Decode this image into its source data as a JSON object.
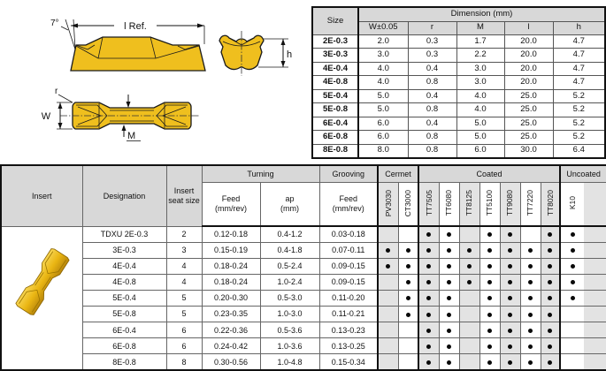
{
  "colors": {
    "insert_gold": "#EFBF1E",
    "header_gray": "#D8D8D8",
    "column_stripe": "#E3E3E3",
    "dot_black": "#0A0A0A",
    "border_dark": "#111111"
  },
  "drawings": {
    "side_view": {
      "angle_label": "7°",
      "length_label": "l Ref."
    },
    "end_view": {
      "height_label": "h"
    },
    "top_view": {
      "radius_label": "r",
      "width_label": "W",
      "middle_label": "M"
    }
  },
  "dimension_table": {
    "size_header": "Size",
    "title": "Dimension (mm)",
    "columns": [
      "W±0.05",
      "r",
      "M",
      "l",
      "h"
    ],
    "rows": [
      {
        "size": "2E-0.3",
        "values": [
          "2.0",
          "0.3",
          "1.7",
          "20.0",
          "4.7"
        ]
      },
      {
        "size": "3E-0.3",
        "values": [
          "3.0",
          "0.3",
          "2.2",
          "20.0",
          "4.7"
        ]
      },
      {
        "size": "4E-0.4",
        "values": [
          "4.0",
          "0.4",
          "3.0",
          "20.0",
          "4.7"
        ]
      },
      {
        "size": "4E-0.8",
        "values": [
          "4.0",
          "0.8",
          "3.0",
          "20.0",
          "4.7"
        ]
      },
      {
        "size": "5E-0.4",
        "values": [
          "5.0",
          "0.4",
          "4.0",
          "25.0",
          "5.2"
        ]
      },
      {
        "size": "5E-0.8",
        "values": [
          "5.0",
          "0.8",
          "4.0",
          "25.0",
          "5.2"
        ]
      },
      {
        "size": "6E-0.4",
        "values": [
          "6.0",
          "0.4",
          "5.0",
          "25.0",
          "5.2"
        ]
      },
      {
        "size": "6E-0.8",
        "values": [
          "6.0",
          "0.8",
          "5.0",
          "25.0",
          "5.2"
        ]
      },
      {
        "size": "8E-0.8",
        "values": [
          "8.0",
          "0.8",
          "6.0",
          "30.0",
          "6.4"
        ]
      }
    ]
  },
  "main_table": {
    "headers": {
      "insert": "Insert",
      "designation": "Designation",
      "seat": "Insert seat size",
      "turning": "Turning",
      "grooving": "Grooving",
      "feed_label": "Feed",
      "feed_unit": "(mm/rev)",
      "ap_label": "ap",
      "ap_unit": "(mm)"
    },
    "groups": [
      {
        "label": "Cermet",
        "grades": [
          "PV3030",
          "CT3000"
        ]
      },
      {
        "label": "Coated",
        "grades": [
          "TT7505",
          "TT6080",
          "TT8125",
          "TT5100",
          "TT9080",
          "TT7220",
          "TT8020"
        ]
      },
      {
        "label": "Uncoated",
        "grades": [
          "K10"
        ]
      }
    ],
    "designation_prefix": "TDXU",
    "rows": [
      {
        "size": "2E-0.3",
        "seat": "2",
        "turning_feed": "0.12-0.18",
        "ap": "0.4-1.2",
        "grooving_feed": "0.03-0.18",
        "dots": [
          0,
          0,
          1,
          1,
          0,
          1,
          1,
          0,
          1,
          1
        ]
      },
      {
        "size": "3E-0.3",
        "seat": "3",
        "turning_feed": "0.15-0.19",
        "ap": "0.4-1.8",
        "grooving_feed": "0.07-0.11",
        "dots": [
          1,
          1,
          1,
          1,
          1,
          1,
          1,
          1,
          1,
          1
        ]
      },
      {
        "size": "4E-0.4",
        "seat": "4",
        "turning_feed": "0.18-0.24",
        "ap": "0.5-2.4",
        "grooving_feed": "0.09-0.15",
        "dots": [
          1,
          1,
          1,
          1,
          1,
          1,
          1,
          1,
          1,
          1
        ]
      },
      {
        "size": "4E-0.8",
        "seat": "4",
        "turning_feed": "0.18-0.24",
        "ap": "1.0-2.4",
        "grooving_feed": "0.09-0.15",
        "dots": [
          0,
          1,
          1,
          1,
          1,
          1,
          1,
          1,
          1,
          1
        ]
      },
      {
        "size": "5E-0.4",
        "seat": "5",
        "turning_feed": "0.20-0.30",
        "ap": "0.5-3.0",
        "grooving_feed": "0.11-0.20",
        "dots": [
          0,
          1,
          1,
          1,
          0,
          1,
          1,
          1,
          1,
          1
        ]
      },
      {
        "size": "5E-0.8",
        "seat": "5",
        "turning_feed": "0.23-0.35",
        "ap": "1.0-3.0",
        "grooving_feed": "0.11-0.21",
        "dots": [
          0,
          1,
          1,
          1,
          0,
          1,
          1,
          1,
          1,
          0
        ]
      },
      {
        "size": "6E-0.4",
        "seat": "6",
        "turning_feed": "0.22-0.36",
        "ap": "0.5-3.6",
        "grooving_feed": "0.13-0.23",
        "dots": [
          0,
          0,
          1,
          1,
          0,
          1,
          1,
          1,
          1,
          0
        ]
      },
      {
        "size": "6E-0.8",
        "seat": "6",
        "turning_feed": "0.24-0.42",
        "ap": "1.0-3.6",
        "grooving_feed": "0.13-0.25",
        "dots": [
          0,
          0,
          1,
          1,
          0,
          1,
          1,
          1,
          1,
          0
        ]
      },
      {
        "size": "8E-0.8",
        "seat": "8",
        "turning_feed": "0.30-0.56",
        "ap": "1.0-4.8",
        "grooving_feed": "0.15-0.34",
        "dots": [
          0,
          0,
          1,
          1,
          0,
          1,
          1,
          1,
          1,
          0
        ]
      }
    ]
  }
}
